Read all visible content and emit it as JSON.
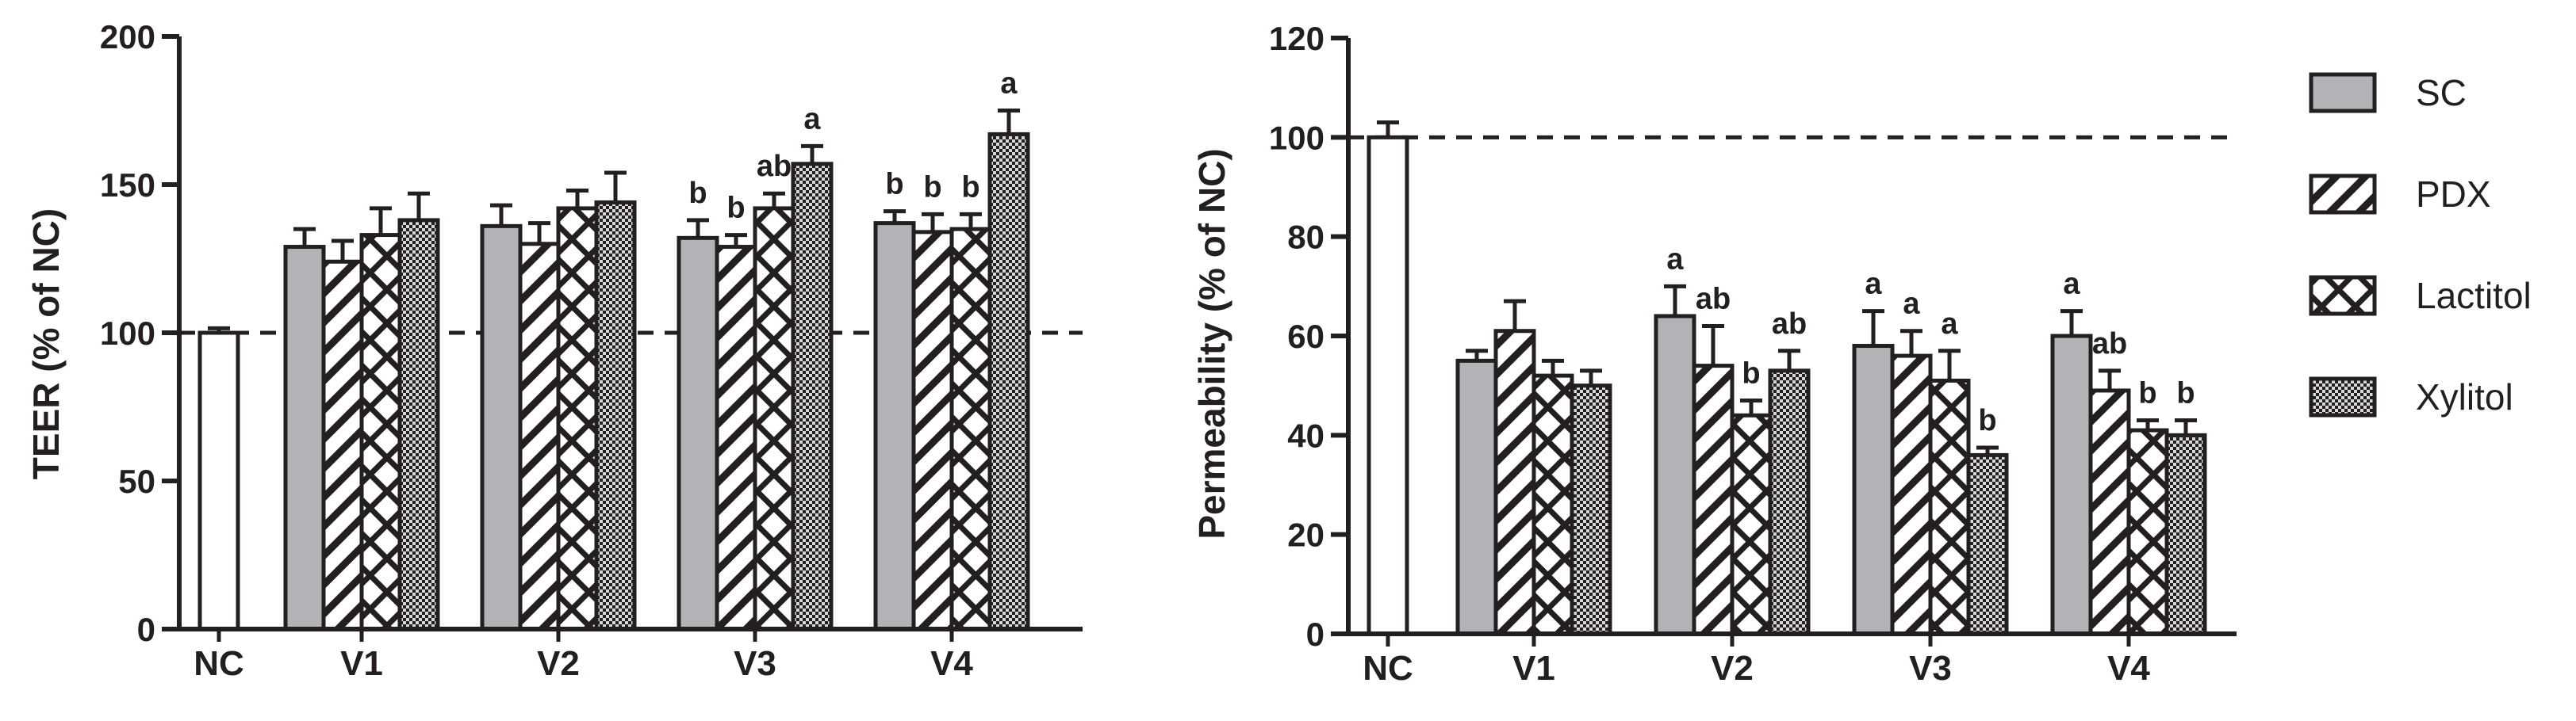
{
  "chart_data": [
    {
      "type": "bar",
      "ylabel": "TEER (% of NC)",
      "ylim": [
        0,
        200
      ],
      "yticks": [
        0,
        50,
        100,
        150,
        200
      ],
      "reference_line": 100,
      "control": {
        "label": "NC",
        "value": 100,
        "error": 1.5
      },
      "categories": [
        "V1",
        "V2",
        "V3",
        "V4"
      ],
      "series": [
        {
          "name": "SC",
          "values": [
            129,
            136,
            132,
            137
          ],
          "errors": [
            6,
            7,
            6,
            4
          ],
          "letters": [
            "",
            "",
            "b",
            "b"
          ]
        },
        {
          "name": "PDX",
          "values": [
            124,
            130,
            129,
            134
          ],
          "errors": [
            7,
            7,
            4,
            6
          ],
          "letters": [
            "",
            "",
            "b",
            "b"
          ]
        },
        {
          "name": "Lactitol",
          "values": [
            133,
            142,
            142,
            135
          ],
          "errors": [
            9,
            6,
            5,
            5
          ],
          "letters": [
            "",
            "",
            "ab",
            "b"
          ]
        },
        {
          "name": "Xylitol",
          "values": [
            138,
            144,
            157,
            167
          ],
          "errors": [
            9,
            10,
            6,
            8
          ],
          "letters": [
            "",
            "",
            "a",
            "a"
          ]
        }
      ]
    },
    {
      "type": "bar",
      "ylabel": "Permeability (% of NC)",
      "ylim": [
        0,
        120
      ],
      "yticks": [
        0,
        20,
        40,
        60,
        80,
        100,
        120
      ],
      "reference_line": 100,
      "control": {
        "label": "NC",
        "value": 100,
        "error": 3
      },
      "categories": [
        "V1",
        "V2",
        "V3",
        "V4"
      ],
      "series": [
        {
          "name": "SC",
          "values": [
            55,
            64,
            58,
            60
          ],
          "errors": [
            2,
            6,
            7,
            5
          ],
          "letters": [
            "",
            "a",
            "a",
            "a"
          ]
        },
        {
          "name": "PDX",
          "values": [
            61,
            54,
            56,
            49
          ],
          "errors": [
            6,
            8,
            5,
            4
          ],
          "letters": [
            "",
            "ab",
            "a",
            "ab"
          ]
        },
        {
          "name": "Lactitol",
          "values": [
            52,
            44,
            51,
            41
          ],
          "errors": [
            3,
            3,
            6,
            2
          ],
          "letters": [
            "",
            "b",
            "a",
            "b"
          ]
        },
        {
          "name": "Xylitol",
          "values": [
            50,
            53,
            36,
            40
          ],
          "errors": [
            3,
            4,
            1.5,
            3
          ],
          "letters": [
            "",
            "ab",
            "b",
            "b"
          ]
        }
      ]
    }
  ],
  "legend": {
    "items": [
      {
        "name": "SC",
        "pattern": "solid-gray"
      },
      {
        "name": "PDX",
        "pattern": "diagonal-hatch"
      },
      {
        "name": "Lactitol",
        "pattern": "cross-hatch"
      },
      {
        "name": "Xylitol",
        "pattern": "checkered"
      }
    ]
  },
  "colors": {
    "ink": "#231f20",
    "gray_fill": "#b1b3b6",
    "control_fill": "#ffffff",
    "checker_dark": "#231f20",
    "checker_light": "#d9d9d9"
  }
}
